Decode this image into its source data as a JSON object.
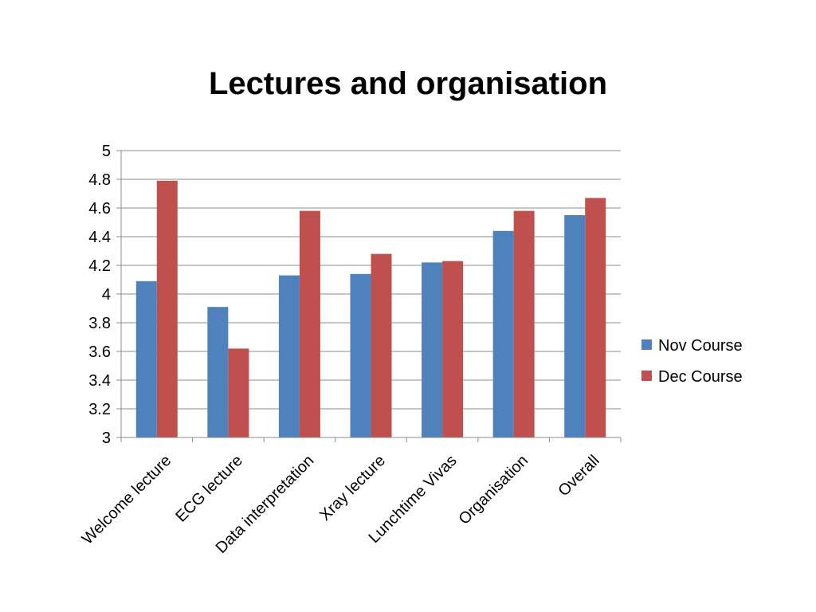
{
  "chart_data": {
    "type": "bar",
    "title": "Lectures and organisation",
    "xlabel": "",
    "ylabel": "",
    "categories": [
      "Welcome lecture",
      "ECG lecture",
      "Data interpretation",
      "Xray lecture",
      "Lunchtime Vivas",
      "Organisation",
      "Overall"
    ],
    "series": [
      {
        "name": "Nov Course",
        "color": "#4F81BD",
        "values": [
          4.09,
          3.91,
          4.13,
          4.14,
          4.22,
          4.44,
          4.55
        ]
      },
      {
        "name": "Dec Course",
        "color": "#C0504D",
        "values": [
          4.79,
          3.62,
          4.58,
          4.28,
          4.23,
          4.58,
          4.67
        ]
      }
    ],
    "ylim": [
      3,
      5
    ],
    "yticks": [
      "3",
      "3.2",
      "3.4",
      "3.6",
      "3.8",
      "4",
      "4.2",
      "4.4",
      "4.6",
      "4.8",
      "5"
    ],
    "grid": true,
    "legend_position": "right"
  }
}
